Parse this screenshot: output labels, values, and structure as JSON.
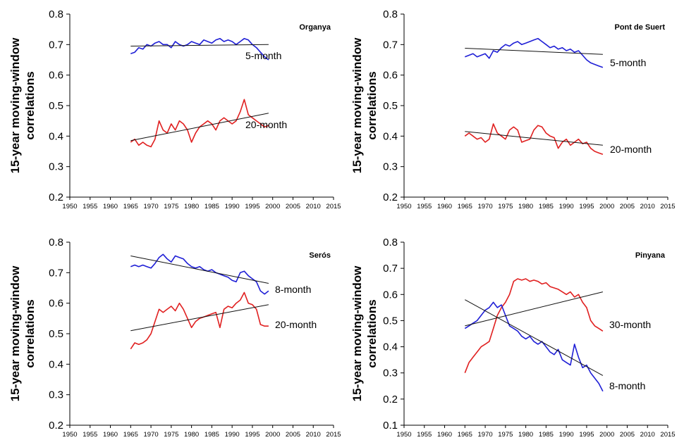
{
  "chart_data": [
    {
      "type": "line",
      "title": "Organya",
      "ylabel": "15-year moving-window correlations",
      "xlabel": "",
      "xlim": [
        1950,
        2015
      ],
      "ylim": [
        0.2,
        0.8
      ],
      "xticks": [
        1950,
        1955,
        1960,
        1965,
        1970,
        1975,
        1980,
        1985,
        1990,
        1995,
        2000,
        2005,
        2010,
        2015
      ],
      "yticks": [
        "0.2",
        "0.3",
        "0.4",
        "0.5",
        "0.6",
        "0.7",
        "0.8"
      ],
      "grid": false,
      "series": [
        {
          "name": "5-month",
          "color": "#1f1fd6",
          "x": [
            1965,
            1966,
            1967,
            1968,
            1969,
            1970,
            1971,
            1972,
            1973,
            1974,
            1975,
            1976,
            1977,
            1978,
            1979,
            1980,
            1981,
            1982,
            1983,
            1984,
            1985,
            1986,
            1987,
            1988,
            1989,
            1990,
            1991,
            1992,
            1993,
            1994,
            1995,
            1996,
            1997,
            1998,
            1999
          ],
          "y": [
            0.67,
            0.675,
            0.69,
            0.685,
            0.7,
            0.695,
            0.705,
            0.71,
            0.7,
            0.7,
            0.69,
            0.71,
            0.7,
            0.695,
            0.7,
            0.71,
            0.705,
            0.7,
            0.715,
            0.71,
            0.705,
            0.715,
            0.72,
            0.71,
            0.715,
            0.71,
            0.7,
            0.71,
            0.72,
            0.715,
            0.7,
            0.69,
            0.675,
            0.66,
            0.65
          ]
        },
        {
          "name": "20-month",
          "color": "#e02020",
          "x": [
            1965,
            1966,
            1967,
            1968,
            1969,
            1970,
            1971,
            1972,
            1973,
            1974,
            1975,
            1976,
            1977,
            1978,
            1979,
            1980,
            1981,
            1982,
            1983,
            1984,
            1985,
            1986,
            1987,
            1988,
            1989,
            1990,
            1991,
            1992,
            1993,
            1994,
            1995,
            1996,
            1997,
            1998,
            1999
          ],
          "y": [
            0.38,
            0.39,
            0.37,
            0.38,
            0.37,
            0.365,
            0.39,
            0.45,
            0.42,
            0.41,
            0.44,
            0.42,
            0.45,
            0.44,
            0.42,
            0.38,
            0.41,
            0.43,
            0.44,
            0.45,
            0.44,
            0.42,
            0.45,
            0.46,
            0.45,
            0.44,
            0.45,
            0.48,
            0.52,
            0.47,
            0.46,
            0.45,
            0.44,
            0.43,
            0.435
          ]
        },
        {
          "name": "",
          "role": "trend",
          "color": "#111111",
          "x": [
            1965,
            1999
          ],
          "y": [
            0.695,
            0.7
          ]
        },
        {
          "name": "",
          "role": "trend",
          "color": "#111111",
          "x": [
            1965,
            1999
          ],
          "y": [
            0.385,
            0.475
          ]
        }
      ]
    },
    {
      "type": "line",
      "title": "Pont de Suert",
      "ylabel": "15-year moving-window correlations",
      "xlabel": "",
      "xlim": [
        1950,
        2015
      ],
      "ylim": [
        0.2,
        0.8
      ],
      "xticks": [
        1950,
        1955,
        1960,
        1965,
        1970,
        1975,
        1980,
        1985,
        1990,
        1995,
        2000,
        2005,
        2010,
        2015
      ],
      "yticks": [
        "0.2",
        "0.3",
        "0.4",
        "0.5",
        "0.6",
        "0.7",
        "0.8"
      ],
      "grid": false,
      "series": [
        {
          "name": "5-month",
          "color": "#1f1fd6",
          "x": [
            1965,
            1966,
            1967,
            1968,
            1969,
            1970,
            1971,
            1972,
            1973,
            1974,
            1975,
            1976,
            1977,
            1978,
            1979,
            1980,
            1981,
            1982,
            1983,
            1984,
            1985,
            1986,
            1987,
            1988,
            1989,
            1990,
            1991,
            1992,
            1993,
            1994,
            1995,
            1996,
            1997,
            1998,
            1999
          ],
          "y": [
            0.66,
            0.665,
            0.67,
            0.66,
            0.665,
            0.67,
            0.655,
            0.68,
            0.675,
            0.69,
            0.7,
            0.695,
            0.705,
            0.71,
            0.7,
            0.705,
            0.71,
            0.715,
            0.72,
            0.71,
            0.7,
            0.69,
            0.695,
            0.685,
            0.69,
            0.68,
            0.685,
            0.675,
            0.68,
            0.665,
            0.65,
            0.64,
            0.635,
            0.63,
            0.625
          ]
        },
        {
          "name": "20-month",
          "color": "#e02020",
          "x": [
            1965,
            1966,
            1967,
            1968,
            1969,
            1970,
            1971,
            1972,
            1973,
            1974,
            1975,
            1976,
            1977,
            1978,
            1979,
            1980,
            1981,
            1982,
            1983,
            1984,
            1985,
            1986,
            1987,
            1988,
            1989,
            1990,
            1991,
            1992,
            1993,
            1994,
            1995,
            1996,
            1997,
            1998,
            1999
          ],
          "y": [
            0.4,
            0.41,
            0.4,
            0.39,
            0.395,
            0.38,
            0.39,
            0.44,
            0.41,
            0.4,
            0.39,
            0.42,
            0.43,
            0.42,
            0.38,
            0.385,
            0.39,
            0.42,
            0.435,
            0.43,
            0.41,
            0.4,
            0.395,
            0.36,
            0.38,
            0.39,
            0.37,
            0.38,
            0.39,
            0.375,
            0.38,
            0.36,
            0.35,
            0.345,
            0.34
          ]
        },
        {
          "name": "",
          "role": "trend",
          "color": "#111111",
          "x": [
            1965,
            1999
          ],
          "y": [
            0.688,
            0.668
          ]
        },
        {
          "name": "",
          "role": "trend",
          "color": "#111111",
          "x": [
            1965,
            1999
          ],
          "y": [
            0.415,
            0.37
          ]
        }
      ]
    },
    {
      "type": "line",
      "title": "Serós",
      "ylabel": "15-year moving-window correlations",
      "xlabel": "",
      "xlim": [
        1950,
        2015
      ],
      "ylim": [
        0.2,
        0.8
      ],
      "xticks": [
        1950,
        1955,
        1960,
        1965,
        1970,
        1975,
        1980,
        1985,
        1990,
        1995,
        2000,
        2005,
        2010,
        2015
      ],
      "yticks": [
        "0.2",
        "0.3",
        "0.4",
        "0.5",
        "0.6",
        "0.7",
        "0.8"
      ],
      "grid": false,
      "series": [
        {
          "name": "8-month",
          "color": "#1f1fd6",
          "x": [
            1965,
            1966,
            1967,
            1968,
            1969,
            1970,
            1971,
            1972,
            1973,
            1974,
            1975,
            1976,
            1977,
            1978,
            1979,
            1980,
            1981,
            1982,
            1983,
            1984,
            1985,
            1986,
            1987,
            1988,
            1989,
            1990,
            1991,
            1992,
            1993,
            1994,
            1995,
            1996,
            1997,
            1998,
            1999
          ],
          "y": [
            0.72,
            0.725,
            0.72,
            0.725,
            0.72,
            0.715,
            0.73,
            0.75,
            0.76,
            0.745,
            0.735,
            0.755,
            0.75,
            0.745,
            0.73,
            0.72,
            0.715,
            0.72,
            0.71,
            0.705,
            0.71,
            0.7,
            0.695,
            0.69,
            0.685,
            0.675,
            0.67,
            0.7,
            0.705,
            0.69,
            0.68,
            0.67,
            0.64,
            0.63,
            0.64
          ]
        },
        {
          "name": "20-month",
          "color": "#e02020",
          "x": [
            1965,
            1966,
            1967,
            1968,
            1969,
            1970,
            1971,
            1972,
            1973,
            1974,
            1975,
            1976,
            1977,
            1978,
            1979,
            1980,
            1981,
            1982,
            1983,
            1984,
            1985,
            1986,
            1987,
            1988,
            1989,
            1990,
            1991,
            1992,
            1993,
            1994,
            1995,
            1996,
            1997,
            1998,
            1999
          ],
          "y": [
            0.45,
            0.47,
            0.465,
            0.47,
            0.48,
            0.5,
            0.54,
            0.58,
            0.57,
            0.58,
            0.59,
            0.575,
            0.6,
            0.58,
            0.55,
            0.52,
            0.54,
            0.55,
            0.555,
            0.56,
            0.565,
            0.57,
            0.52,
            0.58,
            0.59,
            0.585,
            0.6,
            0.61,
            0.635,
            0.6,
            0.595,
            0.58,
            0.53,
            0.525,
            0.525
          ]
        },
        {
          "name": "",
          "role": "trend",
          "color": "#111111",
          "x": [
            1965,
            1999
          ],
          "y": [
            0.755,
            0.665
          ]
        },
        {
          "name": "",
          "role": "trend",
          "color": "#111111",
          "x": [
            1965,
            1999
          ],
          "y": [
            0.51,
            0.595
          ]
        }
      ]
    },
    {
      "type": "line",
      "title": "Pinyana",
      "ylabel": "15-year moving-window correlations",
      "xlabel": "",
      "xlim": [
        1950,
        2015
      ],
      "ylim": [
        0.1,
        0.8
      ],
      "xticks": [
        1950,
        1955,
        1960,
        1965,
        1970,
        1975,
        1980,
        1985,
        1990,
        1995,
        2000,
        2005,
        2010,
        2015
      ],
      "yticks": [
        "0.1",
        "0.2",
        "0.3",
        "0.4",
        "0.5",
        "0.6",
        "0.7",
        "0.8"
      ],
      "grid": false,
      "series": [
        {
          "name": "30-month",
          "color": "#e02020",
          "x": [
            1965,
            1966,
            1967,
            1968,
            1969,
            1970,
            1971,
            1972,
            1973,
            1974,
            1975,
            1976,
            1977,
            1978,
            1979,
            1980,
            1981,
            1982,
            1983,
            1984,
            1985,
            1986,
            1987,
            1988,
            1989,
            1990,
            1991,
            1992,
            1993,
            1994,
            1995,
            1996,
            1997,
            1998,
            1999
          ],
          "y": [
            0.3,
            0.34,
            0.36,
            0.38,
            0.4,
            0.41,
            0.42,
            0.47,
            0.52,
            0.55,
            0.57,
            0.6,
            0.65,
            0.66,
            0.655,
            0.66,
            0.65,
            0.655,
            0.65,
            0.64,
            0.645,
            0.63,
            0.625,
            0.62,
            0.61,
            0.6,
            0.61,
            0.59,
            0.6,
            0.57,
            0.55,
            0.5,
            0.48,
            0.47,
            0.46
          ]
        },
        {
          "name": "8-month",
          "color": "#1f1fd6",
          "x": [
            1965,
            1966,
            1967,
            1968,
            1969,
            1970,
            1971,
            1972,
            1973,
            1974,
            1975,
            1976,
            1977,
            1978,
            1979,
            1980,
            1981,
            1982,
            1983,
            1984,
            1985,
            1986,
            1987,
            1988,
            1989,
            1990,
            1991,
            1992,
            1993,
            1994,
            1995,
            1996,
            1997,
            1998,
            1999
          ],
          "y": [
            0.47,
            0.48,
            0.49,
            0.5,
            0.52,
            0.54,
            0.55,
            0.57,
            0.55,
            0.56,
            0.52,
            0.48,
            0.47,
            0.46,
            0.44,
            0.43,
            0.44,
            0.42,
            0.41,
            0.42,
            0.4,
            0.38,
            0.37,
            0.39,
            0.35,
            0.34,
            0.33,
            0.41,
            0.36,
            0.32,
            0.33,
            0.3,
            0.28,
            0.26,
            0.23
          ]
        },
        {
          "name": "",
          "role": "trend",
          "color": "#111111",
          "x": [
            1965,
            1999
          ],
          "y": [
            0.58,
            0.29
          ]
        },
        {
          "name": "",
          "role": "trend",
          "color": "#111111",
          "x": [
            1965,
            1999
          ],
          "y": [
            0.48,
            0.61
          ]
        }
      ]
    }
  ]
}
